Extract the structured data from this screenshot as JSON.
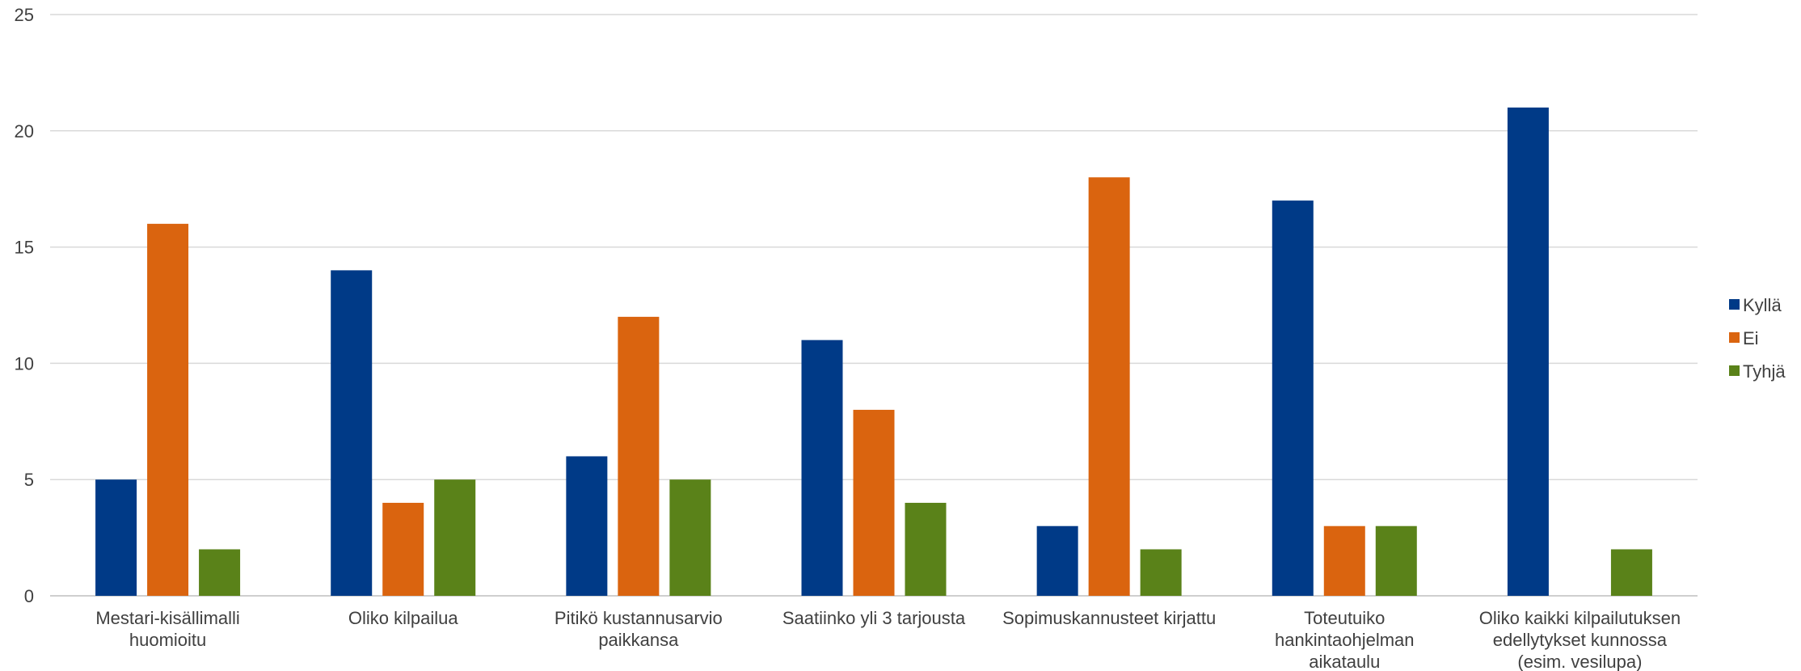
{
  "chart_data": {
    "type": "bar",
    "ylim": [
      0,
      25
    ],
    "yticks": [
      "0",
      "5",
      "10",
      "15",
      "20",
      "25"
    ],
    "grid": true,
    "legend_position": "right",
    "categories": [
      [
        "Mestari-kisällimalli",
        "huomioitu"
      ],
      [
        "Oliko kilpailua"
      ],
      [
        "Pitikö kustannusarvio",
        "paikkansa"
      ],
      [
        "Saatiinko yli 3 tarjousta"
      ],
      [
        "Sopimuskannusteet kirjattu"
      ],
      [
        "Toteutuiko",
        "hankintaohjelman",
        "aikataulu"
      ],
      [
        "Oliko kaikki kilpailutuksen",
        "edellytykset kunnossa",
        "(esim. vesilupa)"
      ]
    ],
    "series": [
      {
        "name": "Kyllä",
        "color": "#003A87",
        "values": [
          5,
          14,
          6,
          11,
          3,
          17,
          21
        ]
      },
      {
        "name": "Ei",
        "color": "#DA640F",
        "values": [
          16,
          4,
          12,
          8,
          18,
          3,
          0
        ]
      },
      {
        "name": "Tyhjä",
        "color": "#5A8219",
        "values": [
          2,
          5,
          5,
          4,
          2,
          3,
          2
        ]
      }
    ]
  }
}
